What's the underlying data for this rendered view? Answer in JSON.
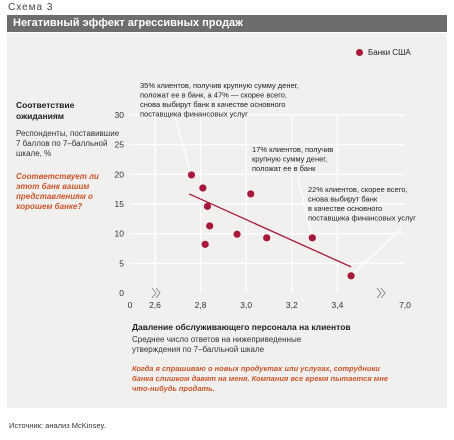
{
  "header": {
    "scheme": "Схема 3",
    "title": "Негативный эффект агрессивных продаж"
  },
  "colors": {
    "point": "#a8183a",
    "line": "#a8183a",
    "grid": "#ffffff",
    "accent": "#c8552a"
  },
  "y_question": "Соответствует ли этот банк вашим представлениям о хорошем банке?",
  "x_note": "Когда я спрашиваю о новых продуктах или услугах, сотрудники банка слишком давят на меня. Компания все время пытается мне что-нибудь продать.",
  "source": "Источник: анализ McKinsey.",
  "chart_data": {
    "type": "scatter",
    "title": "",
    "ylabel": "Соответствие ожиданиям",
    "ylabel_sub": "Респонденты, поставившие 7 баллов по 7–балльной шкале, %",
    "xlabel": "Давление обслуживающего персонала на клиентов",
    "xlabel_sub": "Среднее число ответов на нижеприведенные утверждения по 7–балльной шкале",
    "xlim": [
      2.6,
      3.6
    ],
    "x_axis_break_low": 0,
    "x_axis_break_high": 7.0,
    "ylim": [
      0,
      30
    ],
    "x_ticks": [
      "0",
      "2,6",
      "2,8",
      "3,0",
      "3,2",
      "3,4",
      "7,0"
    ],
    "y_ticks": [
      "0",
      "5",
      "10",
      "15",
      "20",
      "25",
      "30"
    ],
    "legend": [
      {
        "label": "Банки США"
      }
    ],
    "grid": true,
    "series": [
      {
        "name": "Банки США",
        "points": [
          [
            2.76,
            19.9
          ],
          [
            2.81,
            17.7
          ],
          [
            2.83,
            14.6
          ],
          [
            2.84,
            11.3
          ],
          [
            2.82,
            8.2
          ],
          [
            2.96,
            9.9
          ],
          [
            3.02,
            16.7
          ],
          [
            3.09,
            9.3
          ],
          [
            3.29,
            9.3
          ],
          [
            3.46,
            2.9
          ]
        ]
      }
    ],
    "trendline": {
      "from": [
        2.75,
        16.7
      ],
      "to": [
        3.46,
        4.4
      ]
    },
    "annotations": [
      {
        "lines": [
          "35% клиентов, получив крупную сумму денег,",
          "положат ее в банк, а 47% — скорее всего,",
          "снова выбирут банк в качестве основного",
          "поставщика финансовых услуг"
        ],
        "target": [
          2.76,
          19.9
        ]
      },
      {
        "lines": [
          "17% клиентов, получив",
          "крупную сумму денег,",
          "положат ее в банк"
        ],
        "target": [
          3.29,
          9.3
        ]
      },
      {
        "lines": [
          "22% клиентов, скорее всего,",
          "снова выбирут банк",
          "в качестве основного",
          "поставщика финансовых услуг"
        ],
        "target": [
          3.46,
          2.9
        ]
      }
    ]
  }
}
